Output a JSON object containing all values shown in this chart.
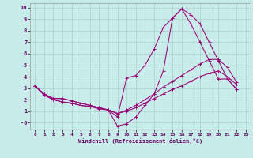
{
  "xlabel": "Windchill (Refroidissement éolien,°C)",
  "xlim": [
    -0.5,
    23.5
  ],
  "ylim": [
    -0.6,
    10.4
  ],
  "xtick_vals": [
    0,
    1,
    2,
    3,
    4,
    5,
    6,
    7,
    8,
    9,
    10,
    11,
    12,
    13,
    14,
    15,
    16,
    17,
    18,
    19,
    20,
    21,
    22,
    23
  ],
  "ytick_vals": [
    0,
    1,
    2,
    3,
    4,
    5,
    6,
    7,
    8,
    9,
    10
  ],
  "bg_color": "#c8ecea",
  "grid_color": "#aacfcc",
  "line_color": "#990077",
  "lines": [
    {
      "x": [
        0,
        1,
        2,
        3,
        4,
        5,
        6,
        7,
        8,
        9,
        10,
        11,
        12,
        13,
        14,
        15,
        16,
        17,
        18,
        19,
        20,
        21,
        22
      ],
      "y": [
        3.2,
        2.5,
        2.1,
        2.1,
        1.9,
        1.7,
        1.5,
        1.3,
        1.1,
        0.5,
        3.9,
        4.1,
        5.0,
        6.4,
        8.3,
        9.1,
        9.9,
        9.4,
        8.6,
        7.0,
        5.4,
        3.8,
        2.9
      ]
    },
    {
      "x": [
        0,
        1,
        2,
        3,
        4,
        5,
        6,
        7,
        8,
        9,
        10,
        11,
        12,
        13,
        14,
        15,
        16,
        17,
        18,
        19,
        20,
        21,
        22
      ],
      "y": [
        3.2,
        2.5,
        2.1,
        2.1,
        1.9,
        1.7,
        1.5,
        1.3,
        1.1,
        -0.3,
        -0.1,
        0.5,
        1.5,
        2.5,
        4.5,
        9.1,
        9.9,
        8.6,
        7.0,
        5.4,
        3.8,
        3.8,
        2.9
      ]
    },
    {
      "x": [
        0,
        1,
        2,
        3,
        4,
        5,
        6,
        7,
        8,
        9,
        10,
        11,
        12,
        13,
        14,
        15,
        16,
        17,
        18,
        19,
        20,
        21,
        22
      ],
      "y": [
        3.2,
        2.4,
        2.0,
        1.8,
        1.7,
        1.5,
        1.4,
        1.3,
        1.1,
        0.8,
        1.1,
        1.5,
        2.0,
        2.5,
        3.1,
        3.6,
        4.1,
        4.6,
        5.1,
        5.5,
        5.5,
        4.8,
        3.5
      ]
    },
    {
      "x": [
        0,
        1,
        2,
        3,
        4,
        5,
        6,
        7,
        8,
        9,
        10,
        11,
        12,
        13,
        14,
        15,
        16,
        17,
        18,
        19,
        20,
        21,
        22
      ],
      "y": [
        3.2,
        2.4,
        2.0,
        1.8,
        1.7,
        1.5,
        1.4,
        1.2,
        1.1,
        0.8,
        1.0,
        1.3,
        1.7,
        2.1,
        2.5,
        2.9,
        3.2,
        3.6,
        4.0,
        4.3,
        4.5,
        4.0,
        3.3
      ]
    }
  ]
}
